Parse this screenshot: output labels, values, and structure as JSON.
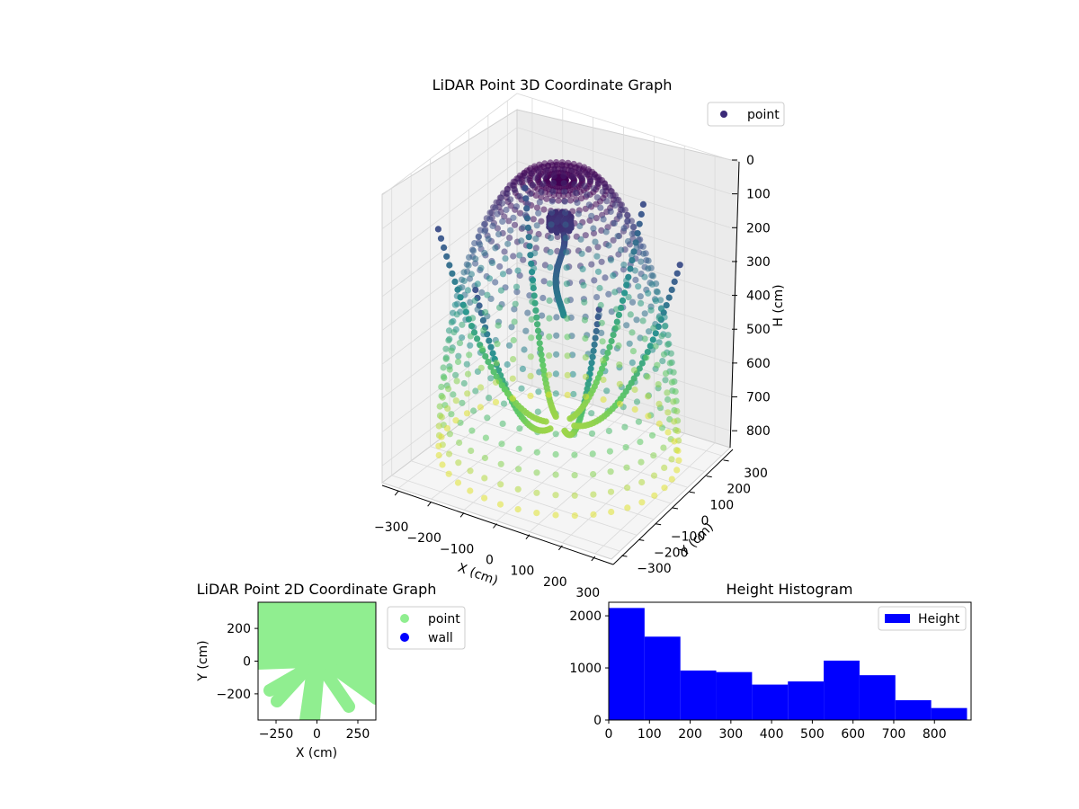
{
  "figure": {
    "background": "#ffffff"
  },
  "chart_data": [
    {
      "type": "scatter3d",
      "title": "LiDAR Point 3D Coordinate Graph",
      "xlabel": "X (cm)",
      "ylabel": "Y (cm)",
      "zlabel": "H (cm)",
      "xticks": [
        "−300",
        "−200",
        "−100",
        "0",
        "100",
        "200",
        "300"
      ],
      "yticks": [
        "−300",
        "−200",
        "−100",
        "0",
        "100",
        "200",
        "300"
      ],
      "zticks": [
        "0",
        "100",
        "200",
        "300",
        "400",
        "500",
        "600",
        "700",
        "800"
      ],
      "xlim": [
        -350,
        350
      ],
      "ylim": [
        -350,
        350
      ],
      "zlim": [
        0,
        850
      ],
      "zaxis_inverted": true,
      "colormap": "viridis",
      "colormap_range": [
        "#440154",
        "#3b528b",
        "#21918c",
        "#5ec962",
        "#fde725"
      ],
      "legend": {
        "entries": [
          "point"
        ],
        "placement": "upper right",
        "marker_color": "#3b2a78"
      },
      "grid": true
    },
    {
      "type": "scatter",
      "title": "LiDAR Point 2D Coordinate Graph",
      "xlabel": "X (cm)",
      "ylabel": "Y (cm)",
      "xticks": [
        "−250",
        "0",
        "250"
      ],
      "yticks": [
        "−200",
        "0",
        "200"
      ],
      "xlim": [
        -360,
        360
      ],
      "ylim": [
        -360,
        360
      ],
      "series": [
        {
          "name": "point",
          "color": "#90ee90"
        },
        {
          "name": "wall",
          "color": "#0000ff"
        }
      ],
      "legend": {
        "placement": "outside right"
      }
    },
    {
      "type": "bar",
      "title": "Height Histogram",
      "bin_edges": [
        0,
        88,
        176,
        264,
        352,
        440,
        528,
        616,
        704,
        792,
        880
      ],
      "values": [
        2150,
        1600,
        950,
        920,
        680,
        740,
        1140,
        860,
        380,
        230
      ],
      "xticks": [
        "0",
        "100",
        "200",
        "300",
        "400",
        "500",
        "600",
        "700",
        "800"
      ],
      "yticks": [
        "0",
        "1000",
        "2000"
      ],
      "xlim": [
        0,
        890
      ],
      "ylim": [
        0,
        2260
      ],
      "color": "#0000ff",
      "legend": {
        "entries": [
          "Height"
        ],
        "placement": "upper right"
      }
    }
  ]
}
